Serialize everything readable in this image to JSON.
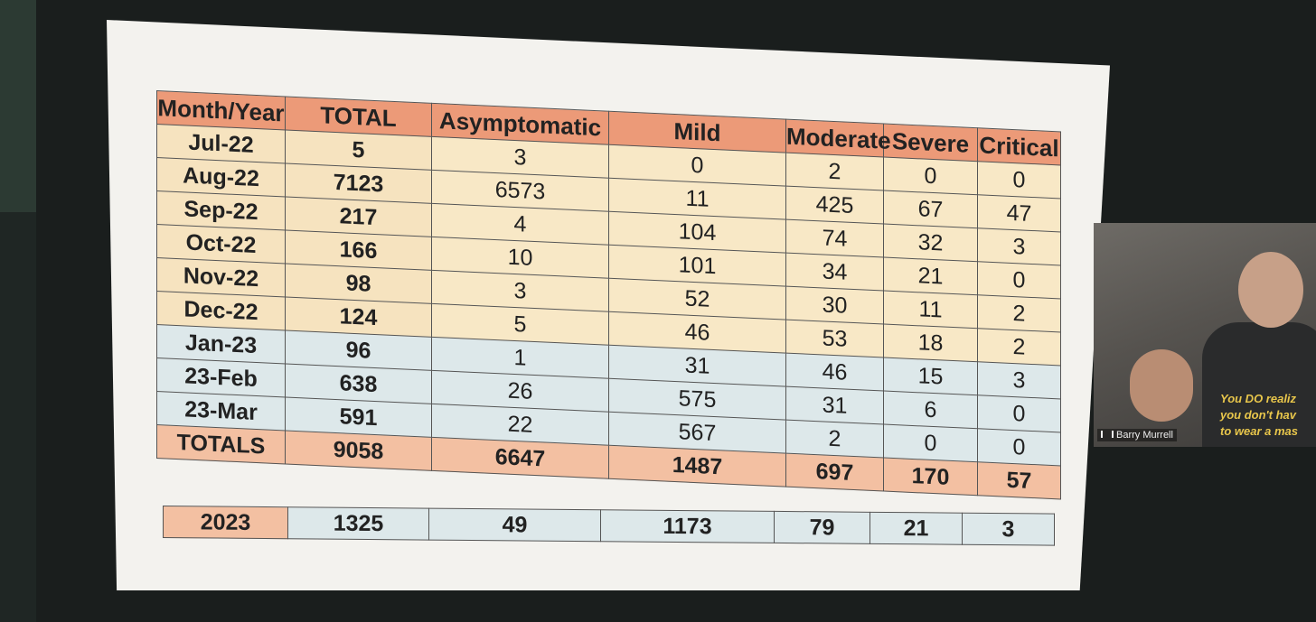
{
  "table": {
    "headers": [
      "Month/Year",
      "TOTAL",
      "Asymptomatic",
      "Mild",
      "Moderate",
      "Severe",
      "Critical"
    ],
    "rows": [
      {
        "month": "Jul-22",
        "total": "5",
        "asymptomatic": "3",
        "mild": "0",
        "moderate": "2",
        "severe": "0",
        "critical": "0"
      },
      {
        "month": "Aug-22",
        "total": "7123",
        "asymptomatic": "6573",
        "mild": "11",
        "moderate": "425",
        "severe": "67",
        "critical": "47"
      },
      {
        "month": "Sep-22",
        "total": "217",
        "asymptomatic": "4",
        "mild": "104",
        "moderate": "74",
        "severe": "32",
        "critical": "3"
      },
      {
        "month": "Oct-22",
        "total": "166",
        "asymptomatic": "10",
        "mild": "101",
        "moderate": "34",
        "severe": "21",
        "critical": "0"
      },
      {
        "month": "Nov-22",
        "total": "98",
        "asymptomatic": "3",
        "mild": "52",
        "moderate": "30",
        "severe": "11",
        "critical": "2"
      },
      {
        "month": "Dec-22",
        "total": "124",
        "asymptomatic": "5",
        "mild": "46",
        "moderate": "53",
        "severe": "18",
        "critical": "2"
      },
      {
        "month": "Jan-23",
        "total": "96",
        "asymptomatic": "1",
        "mild": "31",
        "moderate": "46",
        "severe": "15",
        "critical": "3"
      },
      {
        "month": "23-Feb",
        "total": "638",
        "asymptomatic": "26",
        "mild": "575",
        "moderate": "31",
        "severe": "6",
        "critical": "0"
      },
      {
        "month": "23-Mar",
        "total": "591",
        "asymptomatic": "22",
        "mild": "567",
        "moderate": "2",
        "severe": "0",
        "critical": "0"
      }
    ],
    "totals": {
      "month": "TOTALS",
      "total": "9058",
      "asymptomatic": "6647",
      "mild": "1487",
      "moderate": "697",
      "severe": "170",
      "critical": "57"
    }
  },
  "year_summary": {
    "year": "2023",
    "total": "1325",
    "asymptomatic": "49",
    "mild": "1173",
    "moderate": "79",
    "severe": "21",
    "critical": "3"
  },
  "video": {
    "participant_name": "Barry Murrell",
    "shirt_lines": [
      "You DO realiz",
      "you don't hav",
      "to wear a mas"
    ]
  },
  "colors": {
    "header": "#ec9a78",
    "year_2022_rows": "#f8e8c6",
    "year_2023_rows": "#dde8ea",
    "totals_row": "#f3c0a2"
  }
}
